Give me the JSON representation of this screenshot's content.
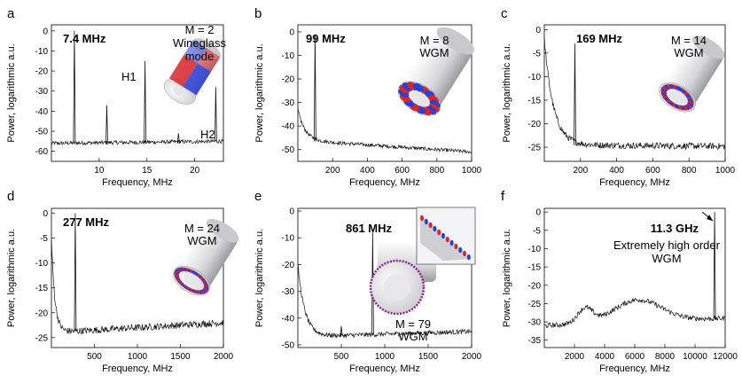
{
  "chart_data": [
    {
      "type": "line",
      "panel": "a",
      "xlabel": "Frequency, MHz",
      "ylabel": "Power, logarithmic a.u.",
      "xlim": [
        5,
        23
      ],
      "ylim": [
        -65,
        3
      ],
      "xticks": [
        10,
        15,
        20
      ],
      "yticks": [
        0,
        -10,
        -20,
        -30,
        -40,
        -50,
        -60
      ],
      "noise": {
        "start": -56,
        "end": -55,
        "amp": 1.0
      },
      "peaks": [
        {
          "x": 7.4,
          "y": 0
        },
        {
          "x": 10.8,
          "y": -37
        },
        {
          "x": 14.8,
          "y": -15
        },
        {
          "x": 18.3,
          "y": -51
        },
        {
          "x": 22.2,
          "y": -28
        }
      ],
      "freq_label": "7.4 MHz",
      "mode_lines": [
        "M = 2",
        "Wineglass",
        "mode"
      ],
      "annotations": [
        "H1",
        "H2"
      ]
    },
    {
      "type": "line",
      "panel": "b",
      "xlabel": "Frequency, MHz",
      "ylabel": "Power, logarithmic a.u.",
      "xlim": [
        0,
        1000
      ],
      "ylim": [
        -55,
        3
      ],
      "xticks": [
        200,
        400,
        600,
        800,
        1000
      ],
      "yticks": [
        0,
        -10,
        -20,
        -30,
        -40,
        -50
      ],
      "noise": {
        "start": -46,
        "end": -51,
        "amp": 0.8,
        "decay": [
          -33,
          40
        ]
      },
      "peaks": [
        {
          "x": 99,
          "y": -1
        }
      ],
      "freq_label": "99 MHz",
      "mode_lines": [
        "M = 8",
        "WGM"
      ]
    },
    {
      "type": "line",
      "panel": "c",
      "xlabel": "Frequency, MHz",
      "ylabel": "Power, logarithmic a.u.",
      "xlim": [
        0,
        1000
      ],
      "ylim": [
        -28,
        1
      ],
      "xticks": [
        200,
        400,
        600,
        800,
        1000
      ],
      "yticks": [
        0,
        -5,
        -10,
        -15,
        -20,
        -25
      ],
      "noise": {
        "start": -24.5,
        "end": -24.8,
        "amp": 0.7,
        "decay": [
          -2,
          50
        ]
      },
      "peaks": [
        {
          "x": 169,
          "y": -3
        }
      ],
      "freq_label": "169 MHz",
      "mode_lines": [
        "M = 14",
        "WGM"
      ]
    },
    {
      "type": "line",
      "panel": "d",
      "xlabel": "Frequency, MHz",
      "ylabel": "Power, logarithmic a.u.",
      "xlim": [
        0,
        2000
      ],
      "ylim": [
        -27,
        1
      ],
      "xticks": [
        500,
        1000,
        1500,
        2000
      ],
      "yticks": [
        0,
        -5,
        -10,
        -15,
        -20,
        -25
      ],
      "noise": {
        "start": -24,
        "end": -22,
        "amp": 0.7,
        "decay": [
          -5,
          40
        ]
      },
      "peaks": [
        {
          "x": 277,
          "y": 0
        }
      ],
      "freq_label": "277 MHz",
      "mode_lines": [
        "M = 24",
        "WGM"
      ]
    },
    {
      "type": "line",
      "panel": "e",
      "xlabel": "Frequency, MHz",
      "ylabel": "Power, logarithmic a.u.",
      "xlim": [
        0,
        2000
      ],
      "ylim": [
        -51,
        1
      ],
      "xticks": [
        500,
        1000,
        1500,
        2000
      ],
      "yticks": [
        0,
        -10,
        -20,
        -30,
        -40,
        -50
      ],
      "noise": {
        "start": -47,
        "end": -45,
        "amp": 0.9,
        "decay": [
          -20,
          80
        ]
      },
      "peaks": [
        {
          "x": 500,
          "y": -43
        },
        {
          "x": 861,
          "y": -8
        }
      ],
      "freq_label": "861 MHz",
      "mode_lines": [
        "M = 79",
        "WGM"
      ]
    },
    {
      "type": "line",
      "panel": "f",
      "xlabel": "Frequency, MHz",
      "ylabel": "Power, logarithmic a.u.",
      "xlim": [
        0,
        12000
      ],
      "ylim": [
        -37,
        1
      ],
      "xticks": [
        2000,
        4000,
        6000,
        8000,
        10000,
        12000
      ],
      "yticks": [
        0,
        -5,
        -10,
        -15,
        -20,
        -25,
        -30,
        -35
      ],
      "noise": {
        "start": -31,
        "end": -29,
        "amp": 0.7,
        "bumps": [
          {
            "x": 2700,
            "h": 4,
            "w": 700
          },
          {
            "x": 6200,
            "h": 6,
            "w": 2200
          }
        ]
      },
      "peaks": [
        {
          "x": 11300,
          "y": 0
        }
      ],
      "freq_label": "11.3 GHz",
      "mode_lines": [
        "Extremely high order",
        "WGM"
      ]
    }
  ]
}
